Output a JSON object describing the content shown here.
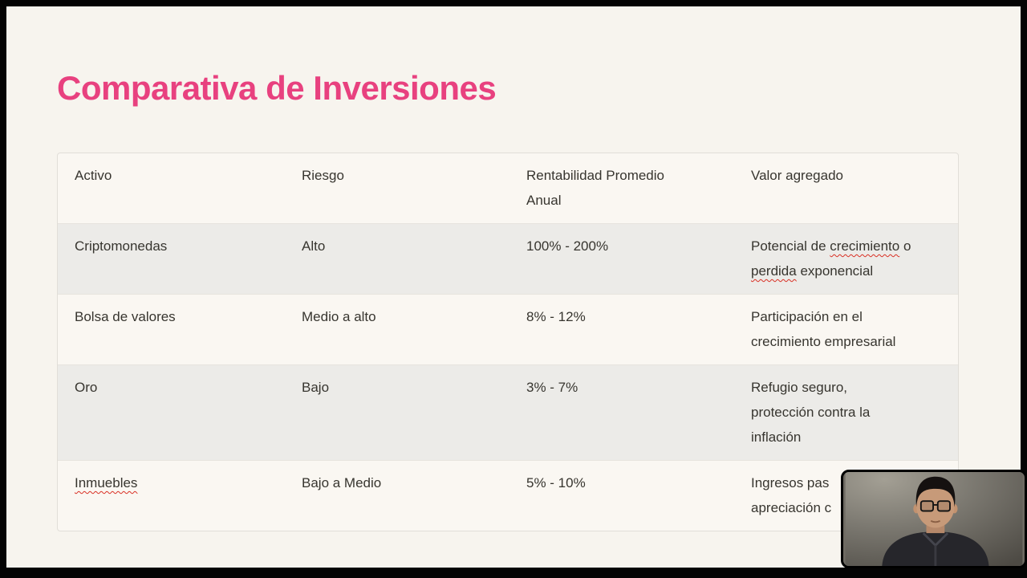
{
  "slide": {
    "title": "Comparativa de Inversiones",
    "title_color": "#e8417f",
    "background_color": "#f7f4ee",
    "frame_color": "#040404"
  },
  "table": {
    "stripe_color": "#ecebe8",
    "spellcheck_underline_color": "#d93025",
    "header": {
      "cells": [
        {
          "lines": [
            [
              {
                "t": "Activo"
              }
            ]
          ]
        },
        {
          "lines": [
            [
              {
                "t": "Riesgo"
              }
            ]
          ]
        },
        {
          "lines": [
            [
              {
                "t": "Rentabilidad Promedio"
              }
            ],
            [
              {
                "t": "Anual"
              }
            ]
          ]
        },
        {
          "lines": [
            [
              {
                "t": "Valor agregado"
              }
            ]
          ]
        }
      ]
    },
    "rows": [
      {
        "shaded": true,
        "cells": [
          {
            "lines": [
              [
                {
                  "t": "Criptomonedas"
                }
              ]
            ]
          },
          {
            "lines": [
              [
                {
                  "t": "Alto"
                }
              ]
            ]
          },
          {
            "lines": [
              [
                {
                  "t": "100% - 200%"
                }
              ]
            ]
          },
          {
            "lines": [
              [
                {
                  "t": "Potencial de "
                },
                {
                  "t": "crecimiento",
                  "spell": true
                },
                {
                  "t": " o"
                }
              ],
              [
                {
                  "t": "perdida",
                  "spell": true
                },
                {
                  "t": " exponencial"
                }
              ]
            ]
          }
        ]
      },
      {
        "shaded": false,
        "cells": [
          {
            "lines": [
              [
                {
                  "t": "Bolsa de valores"
                }
              ]
            ]
          },
          {
            "lines": [
              [
                {
                  "t": "Medio a alto"
                }
              ]
            ]
          },
          {
            "lines": [
              [
                {
                  "t": "8% - 12%"
                }
              ]
            ]
          },
          {
            "lines": [
              [
                {
                  "t": "Participación en el"
                }
              ],
              [
                {
                  "t": "crecimiento empresarial"
                }
              ]
            ]
          }
        ]
      },
      {
        "shaded": true,
        "cells": [
          {
            "lines": [
              [
                {
                  "t": "Oro"
                }
              ]
            ]
          },
          {
            "lines": [
              [
                {
                  "t": "Bajo"
                }
              ]
            ]
          },
          {
            "lines": [
              [
                {
                  "t": "3% - 7%"
                }
              ]
            ]
          },
          {
            "lines": [
              [
                {
                  "t": "Refugio seguro,"
                }
              ],
              [
                {
                  "t": "protección contra la"
                }
              ],
              [
                {
                  "t": "inflación"
                }
              ]
            ]
          }
        ]
      },
      {
        "shaded": false,
        "cells": [
          {
            "lines": [
              [
                {
                  "t": "Inmuebles",
                  "spell": true
                }
              ]
            ]
          },
          {
            "lines": [
              [
                {
                  "t": "Bajo a Medio"
                }
              ]
            ]
          },
          {
            "lines": [
              [
                {
                  "t": "5% - 10%"
                }
              ]
            ]
          },
          {
            "lines": [
              [
                {
                  "t": "Ingresos pas"
                }
              ],
              [
                {
                  "t": "apreciación c"
                }
              ]
            ]
          }
        ]
      }
    ]
  },
  "webcam": {
    "subject": "presenter-with-glasses-dark-jacket",
    "position": "bottom-right"
  }
}
